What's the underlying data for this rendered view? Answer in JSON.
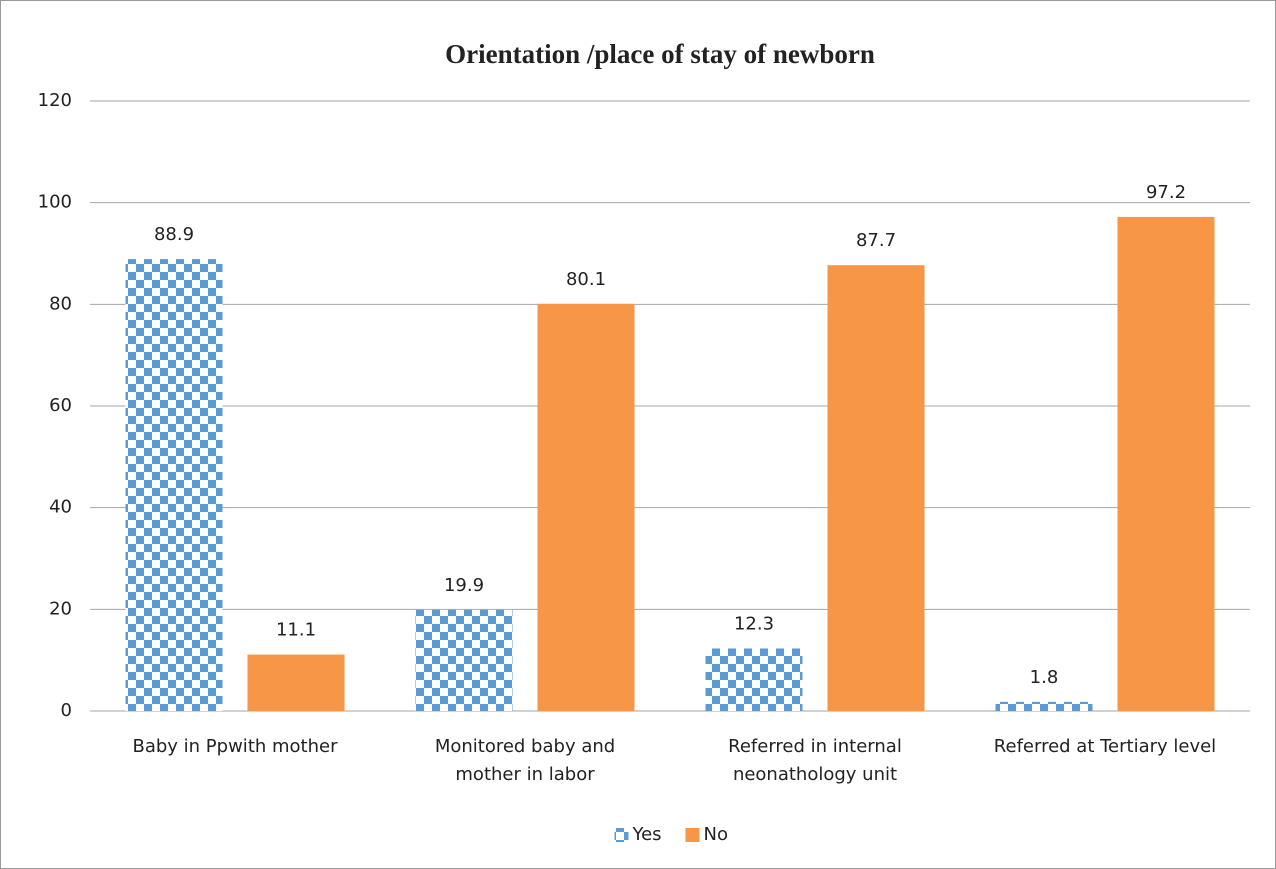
{
  "chart_data": {
    "type": "bar",
    "title": "Orientation /place of stay of newborn",
    "categories": [
      "Baby in Ppwith mother",
      "Monitored baby and\nmother in labor",
      "Referred in internal\nneonathology unit",
      "Referred at Tertiary level"
    ],
    "series": [
      {
        "name": "Yes",
        "color": "#5b9bd5",
        "pattern": "checker",
        "values": [
          88.9,
          19.9,
          12.3,
          1.8
        ]
      },
      {
        "name": "No",
        "color": "#f79646",
        "values": [
          11.1,
          80.1,
          87.7,
          97.2
        ]
      }
    ],
    "ylim": [
      0,
      120
    ],
    "yticks": [
      0,
      20,
      40,
      60,
      80,
      100,
      120
    ],
    "grid": true,
    "legend": "bottom"
  }
}
